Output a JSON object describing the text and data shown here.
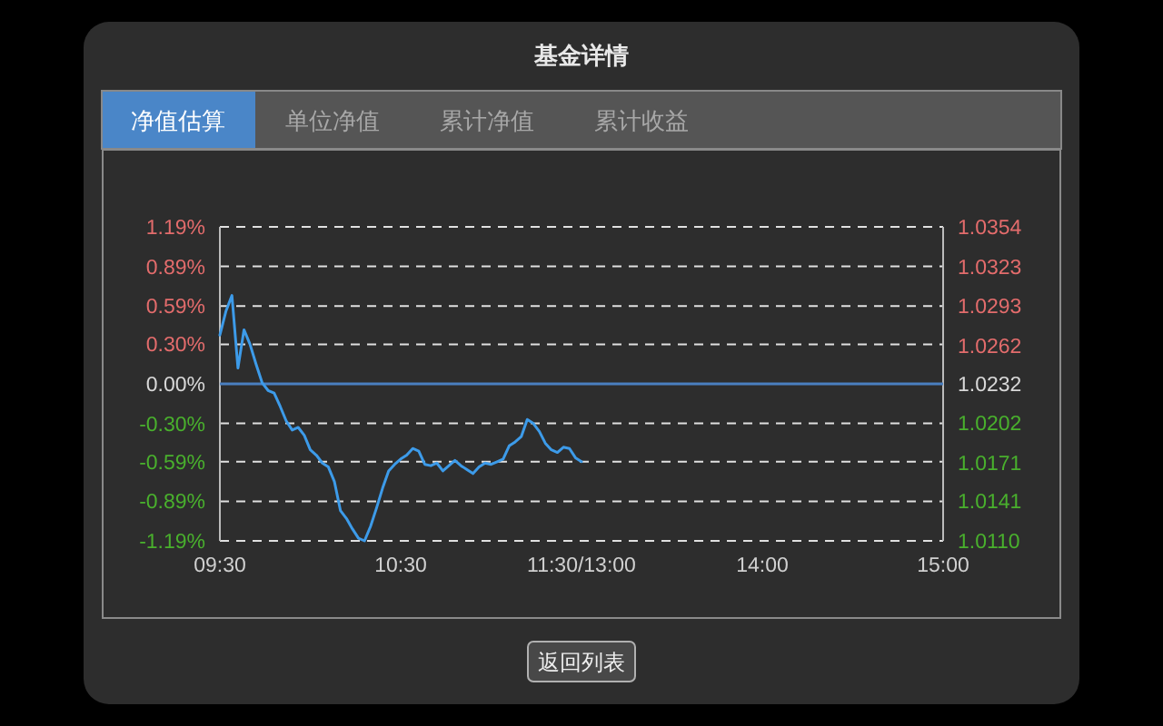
{
  "chart_data": {
    "type": "line",
    "title": "基金详情",
    "annotations": [
      "净值估算",
      "单位净值",
      "累计净值",
      "累计收益",
      "返回列表"
    ],
    "categories": [
      "09:30",
      null,
      null,
      null,
      null,
      null,
      null,
      null,
      null,
      null,
      null,
      null,
      null,
      null,
      null,
      null,
      null,
      null,
      null,
      null,
      null,
      null,
      null,
      null,
      null,
      null,
      null,
      null,
      null,
      null,
      "10:30",
      null,
      null,
      null,
      null,
      null,
      null,
      null,
      null,
      null,
      null,
      null,
      null,
      null,
      null,
      null,
      null,
      null,
      null,
      null,
      null,
      null,
      null,
      null,
      null,
      null,
      null,
      null,
      null,
      null,
      "11:30/13:00",
      null,
      null,
      null,
      null,
      null,
      null,
      null,
      null,
      null,
      null,
      null,
      null,
      null,
      null,
      null,
      null,
      null,
      null,
      null,
      null,
      null,
      null,
      null,
      null,
      null,
      null,
      null,
      null,
      null,
      "14:00",
      null,
      null,
      null,
      null,
      null,
      null,
      null,
      null,
      null,
      null,
      null,
      null,
      null,
      null,
      null,
      null,
      null,
      null,
      null,
      null,
      null,
      null,
      null,
      null,
      null,
      null,
      null,
      null,
      null,
      "15:00"
    ],
    "values": [
      0.37,
      0.55,
      0.67,
      0.12,
      0.41,
      0.3,
      0.15,
      0.01,
      -0.05,
      -0.07,
      -0.17,
      -0.28,
      -0.35,
      -0.33,
      -0.39,
      -0.5,
      -0.54,
      -0.6,
      -0.63,
      -0.74,
      -0.96,
      -1.02,
      -1.1,
      -1.17,
      -1.19,
      -1.08,
      -0.94,
      -0.79,
      -0.66,
      -0.61,
      -0.57,
      -0.54,
      -0.49,
      -0.51,
      -0.61,
      -0.62,
      -0.6,
      -0.66,
      -0.62,
      -0.58,
      -0.62,
      -0.65,
      -0.68,
      -0.63,
      -0.6,
      -0.61,
      -0.59,
      -0.57,
      -0.47,
      -0.44,
      -0.4,
      -0.27,
      -0.3,
      -0.36,
      -0.45,
      -0.5,
      -0.52,
      -0.48,
      -0.49,
      -0.56,
      -0.59,
      null,
      null,
      null,
      null,
      null,
      null,
      null,
      null,
      null,
      null,
      null,
      null,
      null,
      null,
      null,
      null,
      null,
      null,
      null,
      null,
      null,
      null,
      null,
      null,
      null,
      null,
      null,
      null,
      null,
      null,
      null,
      null,
      null,
      null,
      null,
      null,
      null,
      null,
      null,
      null,
      null,
      null,
      null,
      null,
      null,
      null,
      null,
      null,
      null,
      null,
      null,
      null,
      null,
      null,
      null,
      null,
      null,
      null,
      null,
      null
    ],
    "color": "#3d9be9",
    "ylim": [
      -1.19,
      1.19
    ],
    "yticks": [
      {
        "value": 1.19,
        "label": "1.19%"
      },
      {
        "value": 0.89,
        "label": "0.89%"
      },
      {
        "value": 0.59,
        "label": "0.59%"
      },
      {
        "value": 0.3,
        "label": "0.30%"
      },
      {
        "value": 0,
        "label": "0.00%"
      },
      {
        "value": -0.3,
        "label": "-0.30%"
      },
      {
        "value": -0.59,
        "label": "-0.59%"
      },
      {
        "value": -0.89,
        "label": "-0.89%"
      },
      {
        "value": -1.19,
        "label": "-1.19%"
      }
    ],
    "y2lim": [
      1.011,
      1.0354
    ],
    "y2ticks": [
      1.0354,
      1.0323,
      1.0293,
      1.0262,
      1.0232,
      1.0202,
      1.0171,
      1.0141,
      {
        "value": 1.011,
        "label": "1.0110"
      }
    ],
    "ref_lines": [
      {
        "axis": "y",
        "value": 0,
        "color": "#4a7fc0"
      }
    ],
    "grid": "y"
  }
}
